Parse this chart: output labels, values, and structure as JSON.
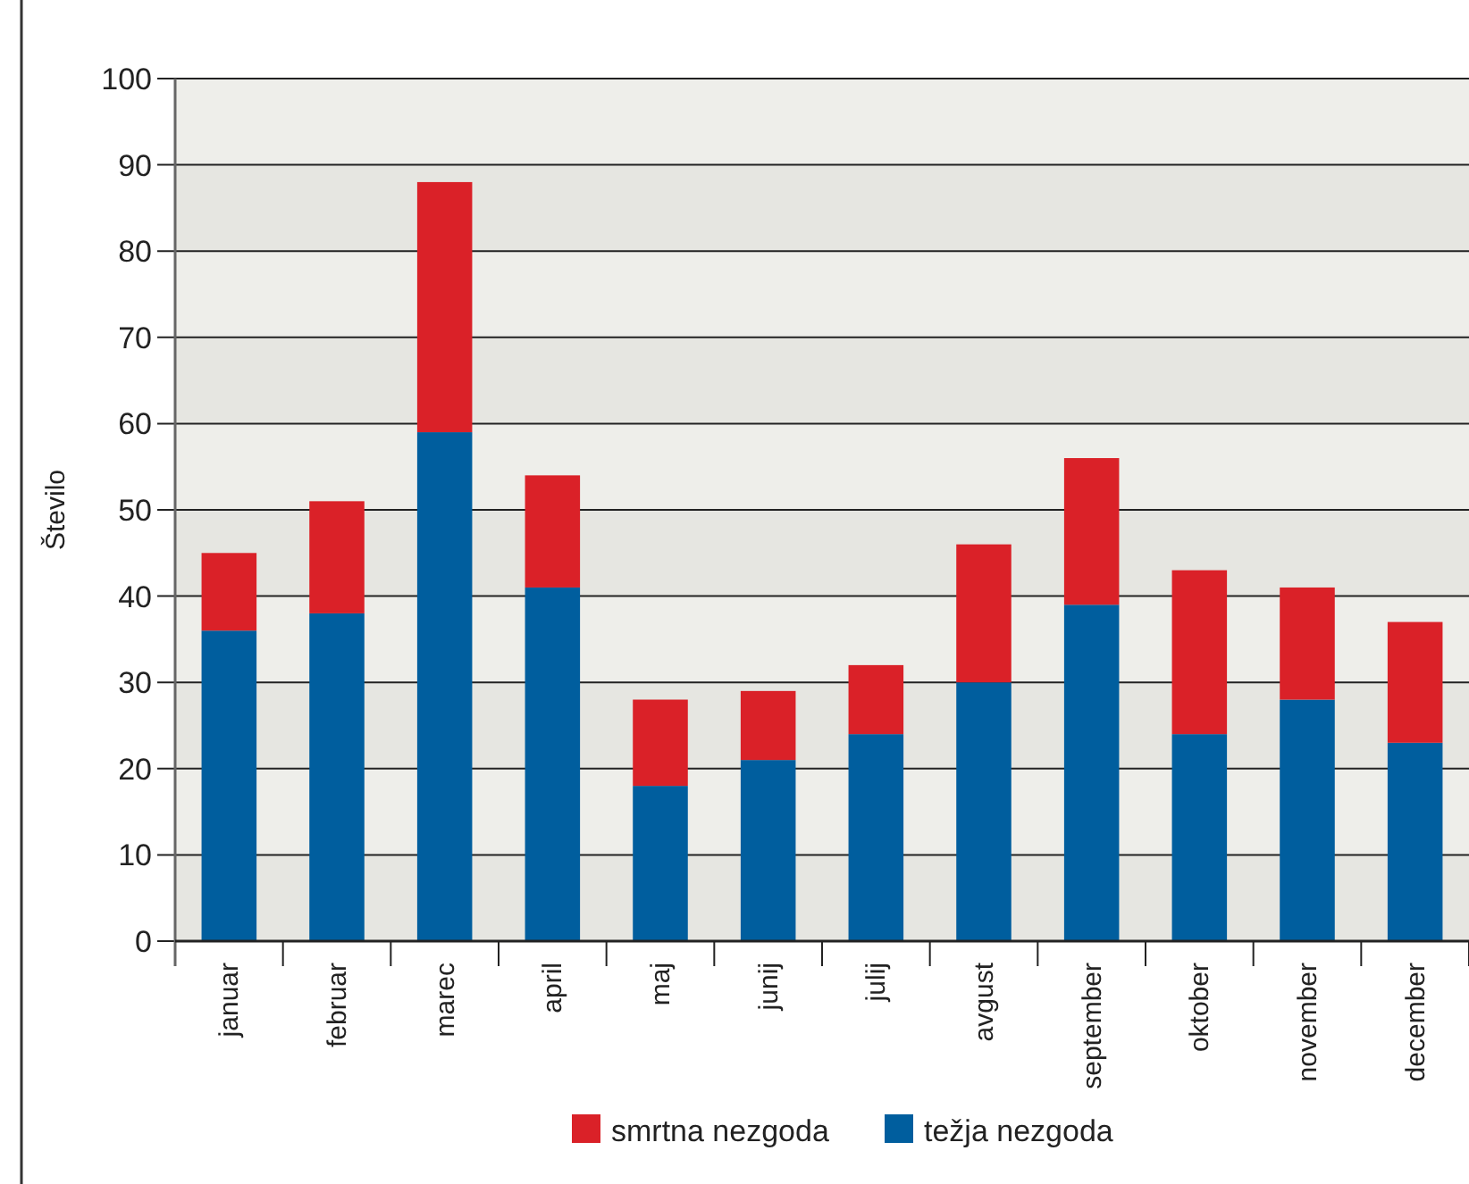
{
  "chart_data": {
    "type": "bar",
    "stacked": true,
    "ylabel": "Število",
    "categories": [
      "januar",
      "februar",
      "marec",
      "april",
      "maj",
      "junij",
      "julij",
      "avgust",
      "september",
      "oktober",
      "november",
      "december"
    ],
    "series": [
      {
        "name": "težja nezgoda",
        "color": "#005e9e",
        "values": [
          36,
          38,
          59,
          41,
          18,
          21,
          24,
          30,
          39,
          24,
          28,
          23
        ]
      },
      {
        "name": "smrtna nezgoda",
        "color": "#da2128",
        "values": [
          9,
          13,
          29,
          13,
          10,
          8,
          8,
          16,
          17,
          19,
          13,
          14
        ]
      }
    ],
    "ylim": [
      0,
      100
    ],
    "yticks": [
      0,
      10,
      20,
      30,
      40,
      50,
      60,
      70,
      80,
      90,
      100
    ],
    "grid": "y",
    "legend": "bottom"
  }
}
